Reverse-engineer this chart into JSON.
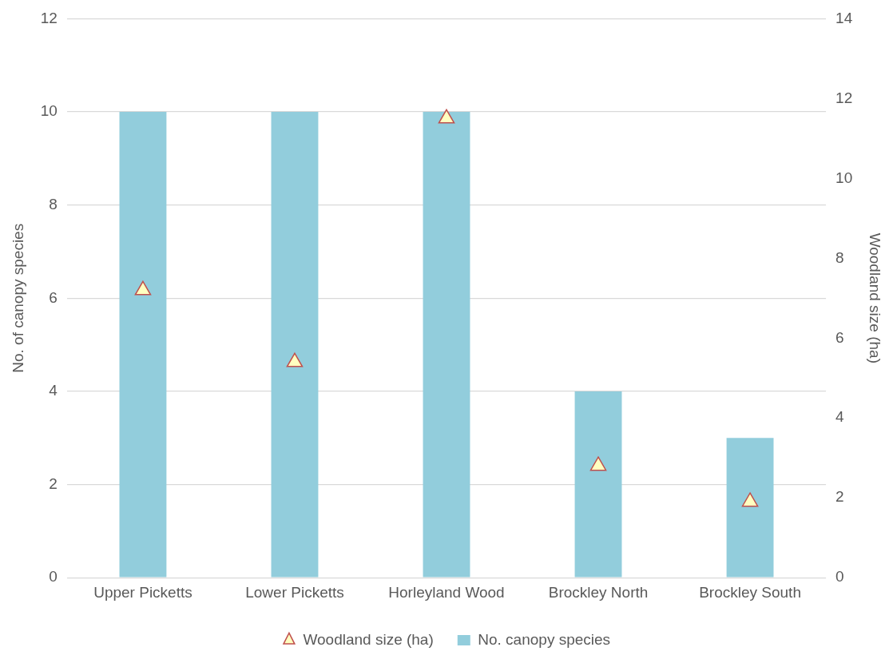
{
  "chart_data": {
    "type": "bar",
    "ylabel": "No. of canopy species",
    "y2label": "Woodland size (ha)",
    "categories": [
      "Upper Picketts",
      "Lower Picketts",
      "Horleyland Wood",
      "Brockley North",
      "Brockley South"
    ],
    "series": [
      {
        "name": "No. canopy species",
        "color": "#92cddc",
        "values": [
          10,
          10,
          10,
          4,
          3
        ]
      },
      {
        "name": "Woodland size (ha)",
        "type": "scatter",
        "axis": "y2",
        "color": "#c0504d",
        "marker": "triangle",
        "values": [
          7.2,
          5.4,
          11.5,
          2.8,
          1.9
        ]
      }
    ],
    "ylim": [
      0,
      12
    ],
    "yticks": [
      0,
      2,
      4,
      6,
      8,
      10,
      12
    ],
    "y2lim": [
      0,
      14
    ],
    "y2ticks": [
      0,
      2,
      4,
      6,
      8,
      10,
      12,
      14
    ],
    "grid": "y",
    "legend": "bottom"
  }
}
